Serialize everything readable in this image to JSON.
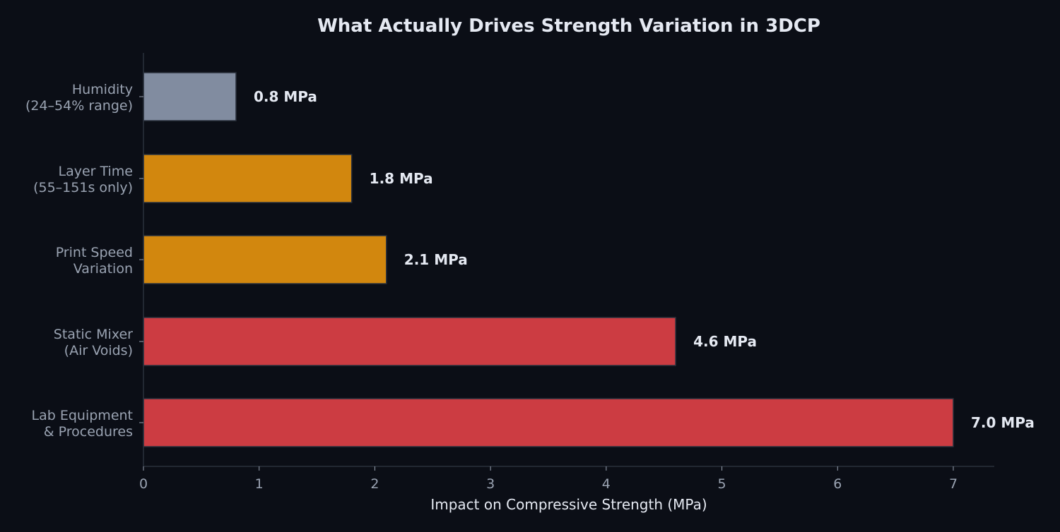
{
  "chart_data": {
    "type": "bar",
    "orientation": "horizontal",
    "title": "What Actually Drives Strength Variation in 3DCP",
    "xlabel": "Impact on Compressive Strength (MPa)",
    "ylabel": "",
    "xlim": [
      0,
      7.35
    ],
    "xticks": [
      "0",
      "1",
      "2",
      "3",
      "4",
      "5",
      "6",
      "7"
    ],
    "grid": false,
    "categories": [
      [
        "Humidity",
        "(24–54% range)"
      ],
      [
        "Layer Time",
        "(55–151s only)"
      ],
      [
        "Print Speed",
        "Variation"
      ],
      [
        "Static Mixer",
        "(Air Voids)"
      ],
      [
        "Lab Equipment",
        "& Procedures"
      ]
    ],
    "values": [
      0.8,
      1.8,
      2.1,
      4.6,
      7.0
    ],
    "data_labels": [
      "0.8 MPa",
      "1.8 MPa",
      "2.1 MPa",
      "4.6 MPa",
      "7.0 MPa"
    ],
    "colors": [
      "#818ca0",
      "#d2870e",
      "#d2870e",
      "#cc3c42",
      "#cc3c42"
    ]
  },
  "theme": {
    "background": "#0b0e16",
    "title_color": "#e5e9f2",
    "tick_color": "#9aa3b2",
    "axis_color": "#2a303c",
    "bar_edge": "#2a303c"
  }
}
